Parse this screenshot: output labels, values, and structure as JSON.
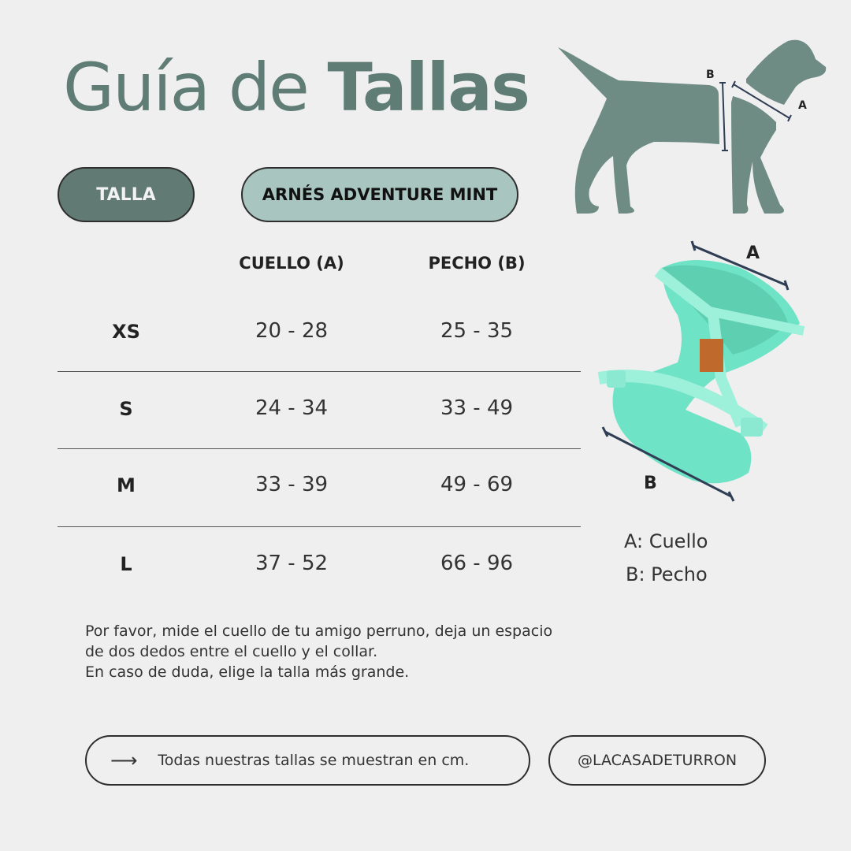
{
  "title": {
    "light": "Guía de",
    "bold": "Tallas"
  },
  "labels": {
    "size": "TALLA",
    "product": "ARNÉS ADVENTURE MINT"
  },
  "table": {
    "headers": [
      "CUELLO (A)",
      "PECHO (B)"
    ],
    "rows": [
      {
        "size": "XS",
        "neck": "20 - 28",
        "chest": "25 - 35"
      },
      {
        "size": "S",
        "neck": "24 - 34",
        "chest": "33 - 49"
      },
      {
        "size": "M",
        "neck": "33 - 39",
        "chest": "49 - 69"
      },
      {
        "size": "L",
        "neck": "37 - 52",
        "chest": "66 - 96"
      }
    ]
  },
  "note": [
    "Por favor, mide el cuello de tu amigo perruno, deja un espacio",
    "de dos dedos entre el cuello y el collar.",
    "En caso de duda, elige la talla más grande."
  ],
  "diagram": {
    "mark_a": "A",
    "mark_b": "B"
  },
  "legend": {
    "a": "A: Cuello",
    "b": "B: Pecho"
  },
  "footer": {
    "units": "Todas nuestras tallas se muestran en cm.",
    "handle": "@LACASADETURRON",
    "arrow_icon": "arrow-right-icon"
  },
  "colors": {
    "background": "#efefef",
    "primary": "#5f7c75",
    "secondary": "#a8c5bf",
    "harness": "#6fe3c6",
    "dog": "#6f8c84"
  }
}
